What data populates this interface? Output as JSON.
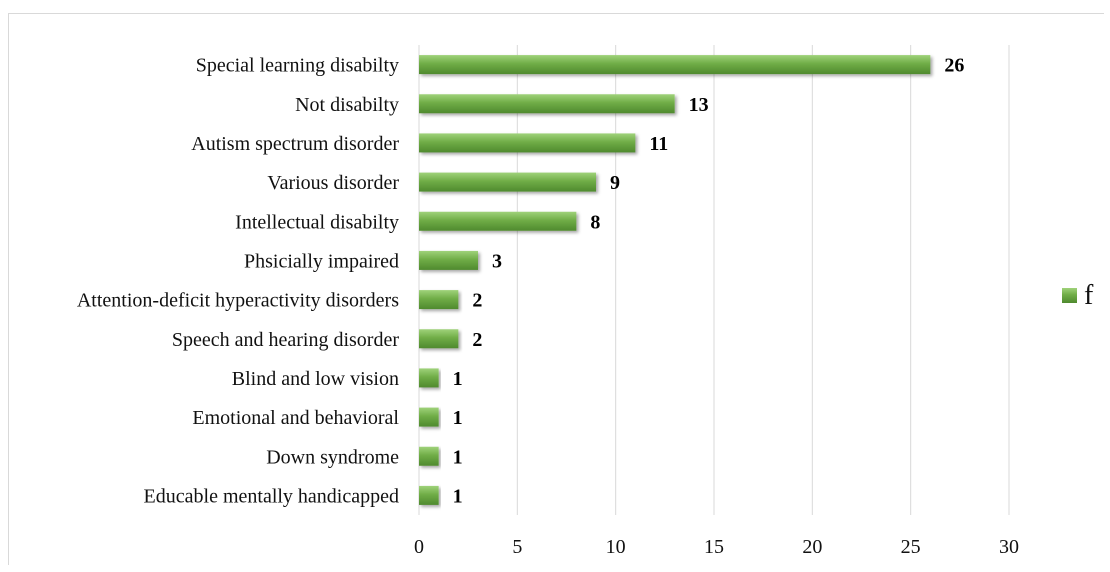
{
  "chart_data": {
    "type": "bar",
    "orientation": "horizontal",
    "categories": [
      "Special learning disabilty",
      "Not disabilty",
      "Autism spectrum disorder",
      "Various disorder",
      "Intellectual disabilty",
      "Phsicially impaired",
      "Attention-deficit hyperactivity disorders",
      "Speech and hearing disorder",
      "Blind and low vision",
      "Emotional and behavioral",
      "Down syndrome",
      "Educable mentally handicapped"
    ],
    "series": [
      {
        "name": "f",
        "values": [
          26,
          13,
          11,
          9,
          8,
          3,
          2,
          2,
          1,
          1,
          1,
          1
        ]
      }
    ],
    "xlim": [
      0,
      30
    ],
    "xticks": [
      0,
      5,
      10,
      15,
      20,
      25,
      30
    ],
    "grid": "vertical",
    "legend": "right",
    "data_labels": true,
    "colors": {
      "bar": "#70ad47",
      "bar_light": "#93c96c",
      "bar_dark": "#4f8a2e",
      "grid": "#d9d9d9"
    }
  }
}
